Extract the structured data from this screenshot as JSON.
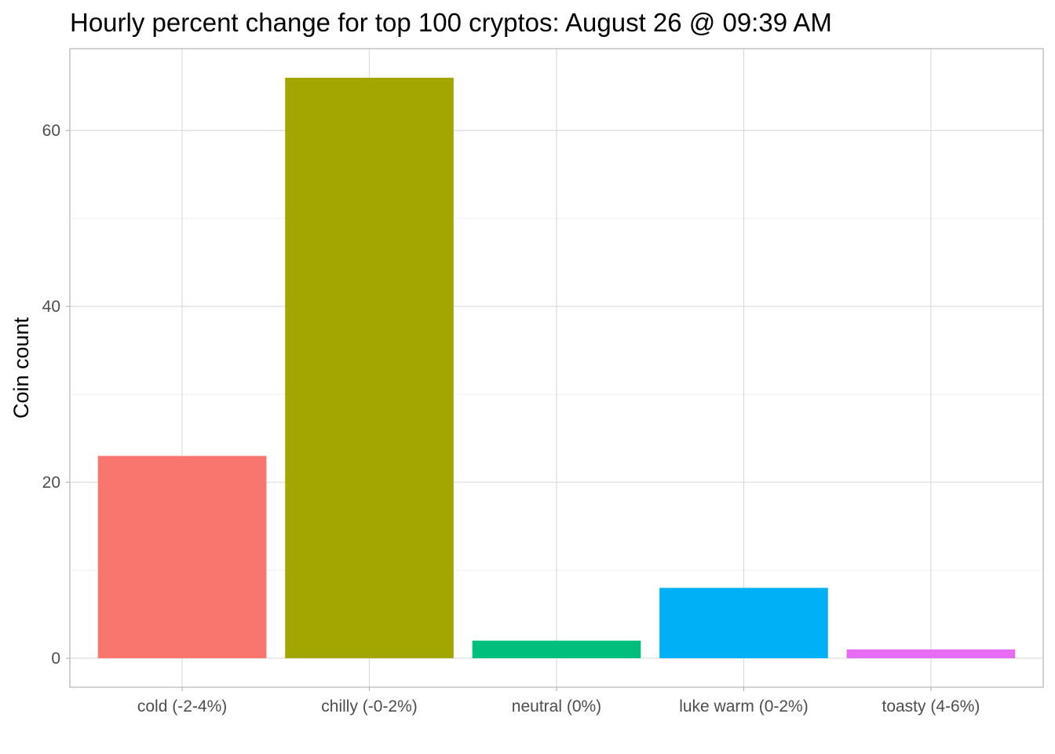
{
  "chart_data": {
    "type": "bar",
    "title": "Hourly percent change for top 100 cryptos: August 26 @ 09:39 AM",
    "xlabel": "",
    "ylabel": "Coin count",
    "categories": [
      "cold (-2-4%)",
      "chilly (-0-2%)",
      "neutral (0%)",
      "luke warm (0-2%)",
      "toasty (4-6%)"
    ],
    "values": [
      23,
      66,
      2,
      8,
      1
    ],
    "colors": [
      "#F8766D",
      "#A3A500",
      "#00BF7D",
      "#00B0F6",
      "#E76BF3"
    ],
    "ylim": [
      -3.3,
      69.3
    ],
    "yticks": [
      0,
      20,
      40,
      60
    ],
    "grid": true,
    "legend": "none"
  }
}
